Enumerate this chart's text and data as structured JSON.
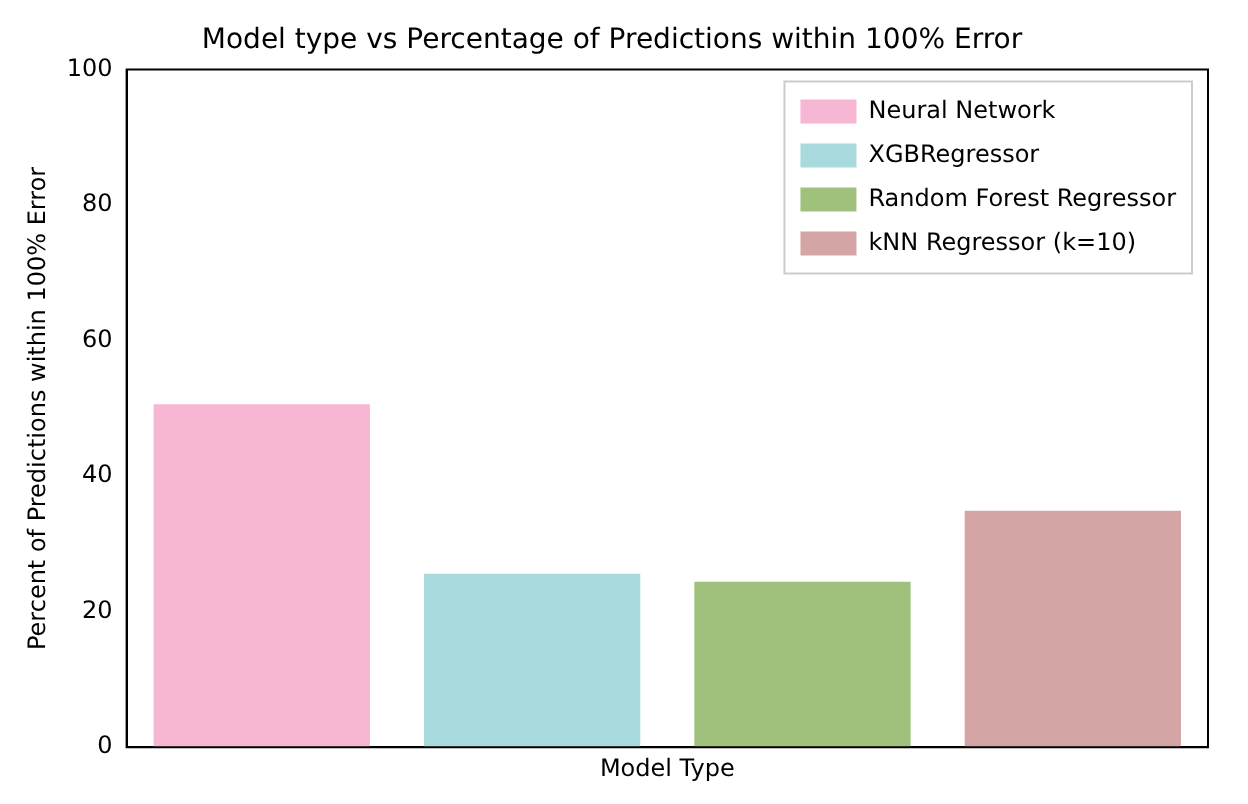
{
  "chart_data": {
    "type": "bar",
    "title": "Model type vs Percentage of Predictions within 100% Error",
    "xlabel": "Model Type",
    "ylabel": "Percent of Predictions within 100% Error",
    "categories": [
      null,
      null,
      null,
      null
    ],
    "series": [
      {
        "name": "Neural Network",
        "color": "#f7b6d2",
        "values": [
          50.6,
          null,
          null,
          null
        ]
      },
      {
        "name": "XGBRegressor",
        "color": "#a8d9dc",
        "values": [
          null,
          25.6,
          null,
          null
        ]
      },
      {
        "name": "Random Forest Regressor",
        "color": "#9fc17c",
        "values": [
          null,
          null,
          24.4,
          null
        ]
      },
      {
        "name": "kNN Regressor (k=10)",
        "color": "#d4a5a4",
        "values": [
          null,
          null,
          null,
          34.9
        ]
      }
    ],
    "ylim": [
      0,
      100
    ],
    "yticks": [
      0,
      20,
      40,
      60,
      80,
      100
    ],
    "grid": false,
    "legend": "top right"
  }
}
